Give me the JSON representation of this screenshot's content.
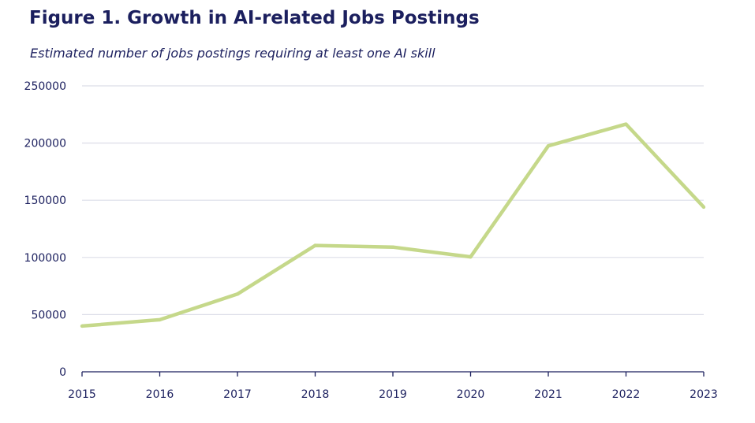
{
  "chart_data": {
    "type": "line",
    "title": "Figure 1. Growth in AI-related Jobs Postings",
    "subtitle": "Estimated number of jobs postings requiring at least one AI skill",
    "xlabel": "",
    "ylabel": "",
    "x": [
      "2015",
      "2016",
      "2017",
      "2018",
      "2019",
      "2020",
      "2021",
      "2022",
      "2023"
    ],
    "series": [
      {
        "values": [
          40000,
          45500,
          68000,
          110500,
          109000,
          100500,
          197500,
          216500,
          144000
        ]
      }
    ],
    "ylim": [
      0,
      250000
    ],
    "yticks": [
      "0",
      "50000",
      "100000",
      "150000",
      "200000",
      "250000"
    ],
    "grid": true,
    "legend": "none"
  },
  "colors": {
    "line": "#c5d88a",
    "grid": "#dcdde8",
    "axis": "#1b1f5e",
    "text": "#1b1f5e"
  }
}
